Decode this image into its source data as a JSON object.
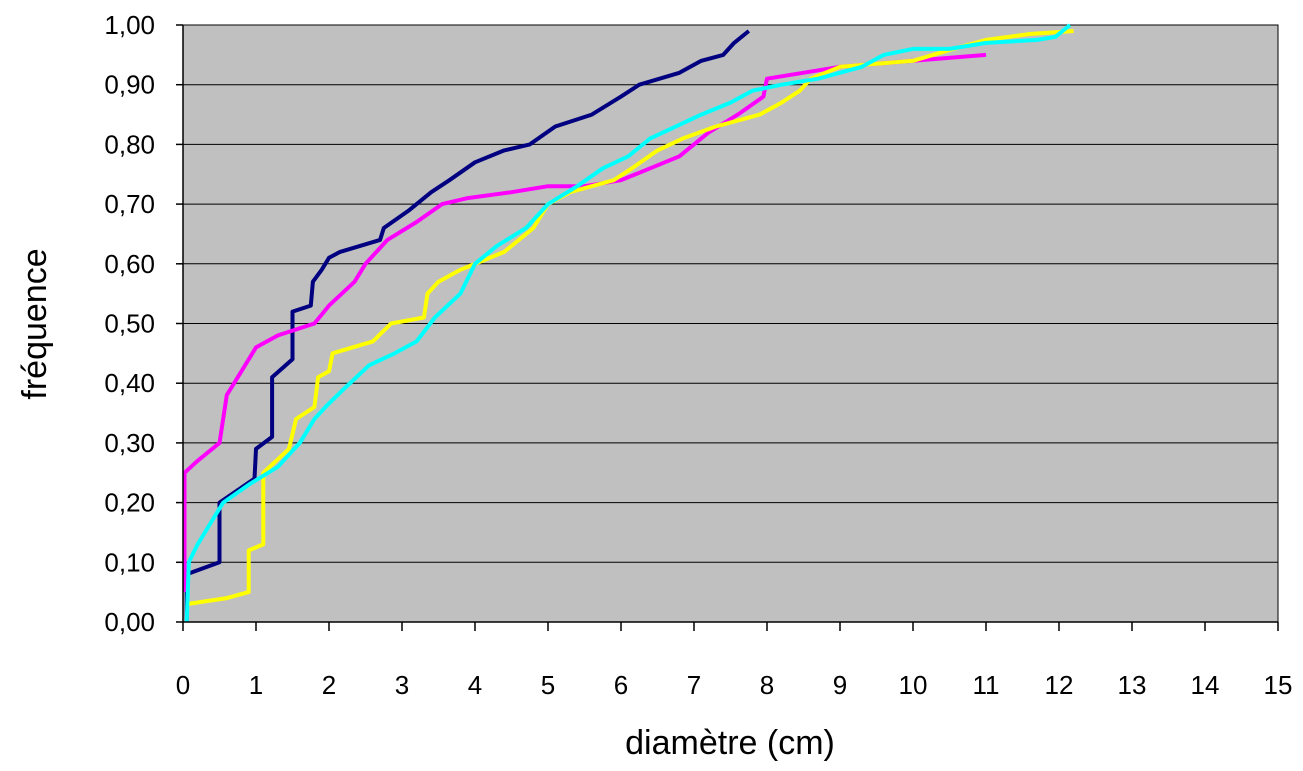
{
  "chart_data": {
    "type": "line",
    "xlabel": "diamètre (cm)",
    "ylabel": "fréquence",
    "xlim": [
      0,
      15
    ],
    "ylim": [
      0,
      1
    ],
    "x_ticks": [
      "0",
      "1",
      "2",
      "3",
      "4",
      "5",
      "6",
      "7",
      "8",
      "9",
      "10",
      "11",
      "12",
      "13",
      "14",
      "15"
    ],
    "y_ticks": [
      "0,00",
      "0,10",
      "0,20",
      "0,30",
      "0,40",
      "0,50",
      "0,60",
      "0,70",
      "0,80",
      "0,90",
      "1,00"
    ],
    "grid": "horizontal",
    "legend": "none",
    "plot_background": "#c0c0c0",
    "series": [
      {
        "color": "#000080",
        "points": [
          [
            0.05,
            0.0
          ],
          [
            0.05,
            0.08
          ],
          [
            0.5,
            0.1
          ],
          [
            0.5,
            0.2
          ],
          [
            0.98,
            0.24
          ],
          [
            1.0,
            0.29
          ],
          [
            1.22,
            0.31
          ],
          [
            1.22,
            0.41
          ],
          [
            1.5,
            0.44
          ],
          [
            1.5,
            0.52
          ],
          [
            1.75,
            0.53
          ],
          [
            1.78,
            0.57
          ],
          [
            1.9,
            0.59
          ],
          [
            2.0,
            0.61
          ],
          [
            2.15,
            0.62
          ],
          [
            2.7,
            0.64
          ],
          [
            2.75,
            0.66
          ],
          [
            3.1,
            0.69
          ],
          [
            3.4,
            0.72
          ],
          [
            3.65,
            0.74
          ],
          [
            4.0,
            0.77
          ],
          [
            4.4,
            0.79
          ],
          [
            4.75,
            0.8
          ],
          [
            5.1,
            0.83
          ],
          [
            5.6,
            0.85
          ],
          [
            6.0,
            0.88
          ],
          [
            6.25,
            0.9
          ],
          [
            6.8,
            0.92
          ],
          [
            7.1,
            0.94
          ],
          [
            7.4,
            0.95
          ],
          [
            7.55,
            0.97
          ],
          [
            7.75,
            0.99
          ]
        ]
      },
      {
        "color": "#ff00ff",
        "points": [
          [
            0.02,
            0.05
          ],
          [
            0.02,
            0.25
          ],
          [
            0.2,
            0.27
          ],
          [
            0.5,
            0.3
          ],
          [
            0.6,
            0.38
          ],
          [
            0.8,
            0.42
          ],
          [
            1.0,
            0.46
          ],
          [
            1.3,
            0.48
          ],
          [
            1.8,
            0.5
          ],
          [
            2.0,
            0.53
          ],
          [
            2.35,
            0.57
          ],
          [
            2.5,
            0.6
          ],
          [
            2.8,
            0.64
          ],
          [
            3.2,
            0.67
          ],
          [
            3.55,
            0.7
          ],
          [
            3.9,
            0.71
          ],
          [
            4.5,
            0.72
          ],
          [
            5.0,
            0.73
          ],
          [
            5.5,
            0.73
          ],
          [
            6.0,
            0.74
          ],
          [
            6.4,
            0.76
          ],
          [
            6.8,
            0.78
          ],
          [
            7.2,
            0.82
          ],
          [
            7.6,
            0.85
          ],
          [
            7.95,
            0.88
          ],
          [
            8.0,
            0.91
          ],
          [
            9.0,
            0.93
          ],
          [
            10.0,
            0.94
          ],
          [
            11.0,
            0.95
          ]
        ]
      },
      {
        "color": "#ffff00",
        "points": [
          [
            0.05,
            0.03
          ],
          [
            0.6,
            0.04
          ],
          [
            0.9,
            0.05
          ],
          [
            0.9,
            0.12
          ],
          [
            1.1,
            0.13
          ],
          [
            1.1,
            0.25
          ],
          [
            1.45,
            0.29
          ],
          [
            1.55,
            0.34
          ],
          [
            1.8,
            0.36
          ],
          [
            1.85,
            0.41
          ],
          [
            2.0,
            0.42
          ],
          [
            2.05,
            0.45
          ],
          [
            2.6,
            0.47
          ],
          [
            2.85,
            0.5
          ],
          [
            3.3,
            0.51
          ],
          [
            3.35,
            0.55
          ],
          [
            3.5,
            0.57
          ],
          [
            3.8,
            0.59
          ],
          [
            4.4,
            0.62
          ],
          [
            4.8,
            0.66
          ],
          [
            5.0,
            0.7
          ],
          [
            5.3,
            0.72
          ],
          [
            5.9,
            0.74
          ],
          [
            6.15,
            0.76
          ],
          [
            6.5,
            0.79
          ],
          [
            6.85,
            0.81
          ],
          [
            7.3,
            0.83
          ],
          [
            7.9,
            0.85
          ],
          [
            8.2,
            0.87
          ],
          [
            8.45,
            0.89
          ],
          [
            8.6,
            0.91
          ],
          [
            9.0,
            0.93
          ],
          [
            10.0,
            0.94
          ],
          [
            10.55,
            0.96
          ],
          [
            11.0,
            0.975
          ],
          [
            11.6,
            0.985
          ],
          [
            12.2,
            0.99
          ]
        ]
      },
      {
        "color": "#00ffff",
        "points": [
          [
            0.05,
            0.0
          ],
          [
            0.08,
            0.1
          ],
          [
            0.2,
            0.13
          ],
          [
            0.45,
            0.18
          ],
          [
            0.55,
            0.2
          ],
          [
            0.9,
            0.23
          ],
          [
            1.3,
            0.26
          ],
          [
            1.6,
            0.3
          ],
          [
            1.8,
            0.34
          ],
          [
            1.95,
            0.36
          ],
          [
            2.2,
            0.39
          ],
          [
            2.55,
            0.43
          ],
          [
            2.9,
            0.45
          ],
          [
            3.2,
            0.47
          ],
          [
            3.45,
            0.51
          ],
          [
            3.8,
            0.55
          ],
          [
            4.0,
            0.6
          ],
          [
            4.3,
            0.63
          ],
          [
            4.7,
            0.66
          ],
          [
            5.0,
            0.7
          ],
          [
            5.4,
            0.73
          ],
          [
            5.75,
            0.76
          ],
          [
            6.1,
            0.78
          ],
          [
            6.4,
            0.81
          ],
          [
            6.75,
            0.83
          ],
          [
            7.1,
            0.85
          ],
          [
            7.5,
            0.87
          ],
          [
            7.8,
            0.89
          ],
          [
            8.2,
            0.9
          ],
          [
            8.7,
            0.91
          ],
          [
            9.3,
            0.93
          ],
          [
            9.6,
            0.95
          ],
          [
            10.0,
            0.96
          ],
          [
            10.5,
            0.96
          ],
          [
            11.0,
            0.97
          ],
          [
            11.7,
            0.975
          ],
          [
            11.95,
            0.98
          ],
          [
            12.15,
            1.0
          ]
        ]
      }
    ]
  }
}
